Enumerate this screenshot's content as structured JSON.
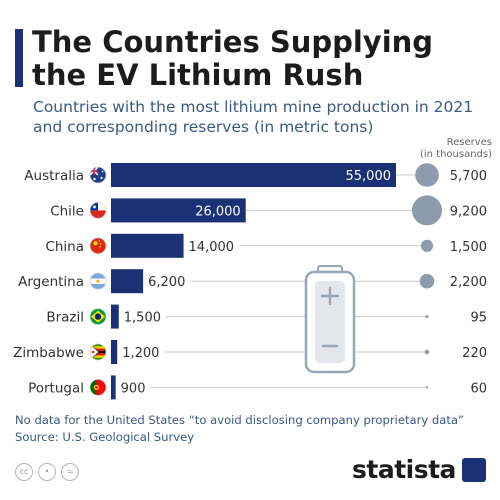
{
  "title": "The Countries Supplying the EV Lithium Rush",
  "subtitle": "Countries with the most lithium mine production in 2021 and corresponding reserves (in metric tons)",
  "reserves_header": [
    "Reserves",
    "(in thousands)"
  ],
  "footnote": "No data for the United States “to avoid disclosing company proprietary data”",
  "source": "Source: U.S. Geological Survey",
  "license_icons": [
    "cc-icon",
    "person-icon",
    "equals-icon"
  ],
  "license_texts": [
    "cc",
    "•",
    "="
  ],
  "brand": "statista",
  "colors": {
    "bar": "#1a3275",
    "bubble": "#8d9cad",
    "title": "#1c1c1c",
    "subtitle": "#3a5a82"
  },
  "chart_data": {
    "type": "bar",
    "orientation": "horizontal",
    "categories": [
      "Australia",
      "Chile",
      "China",
      "Argentina",
      "Brazil",
      "Zimbabwe",
      "Portugal"
    ],
    "flags": [
      "australia-flag-icon",
      "chile-flag-icon",
      "china-flag-icon",
      "argentina-flag-icon",
      "brazil-flag-icon",
      "zimbabwe-flag-icon",
      "portugal-flag-icon"
    ],
    "series": [
      {
        "name": "",
        "values": [
          55000,
          26000,
          14000,
          6200,
          1500,
          1200,
          900
        ]
      },
      {
        "name": "Reserves",
        "values": [
          5700,
          9200,
          1500,
          2200,
          95,
          220,
          60
        ]
      }
    ],
    "value_labels": [
      "55,000",
      "26,000",
      "14,000",
      "6,200",
      "1,500",
      "1,200",
      "900"
    ],
    "reserve_labels": [
      "5,700",
      "9,200",
      "1,500",
      "2,200",
      "95",
      "220",
      "60"
    ],
    "xlim": [
      0,
      55000
    ],
    "grid": false,
    "legend": "none",
    "decoration": "battery-icon"
  }
}
